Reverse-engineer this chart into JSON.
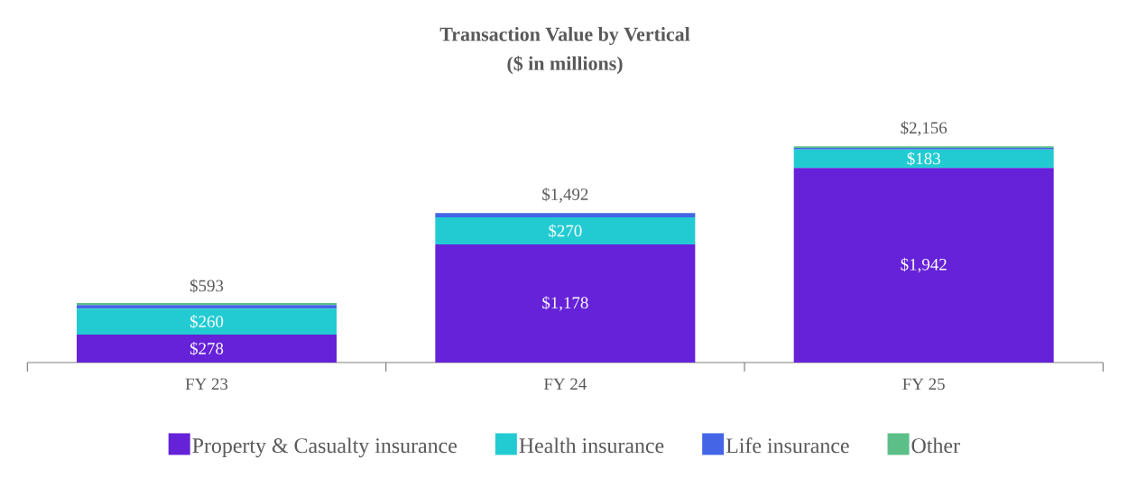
{
  "chart_data": {
    "type": "bar",
    "stacked": true,
    "title": "Transaction Value by Vertical",
    "subtitle": "($ in millions)",
    "categories": [
      "FY 23",
      "FY 24",
      "FY 25"
    ],
    "series": [
      {
        "name": "Property & Casualty insurance",
        "color": "#6622d8",
        "values": [
          278,
          1178,
          1942
        ],
        "value_labels": [
          "$278",
          "$1,178",
          "$1,942"
        ]
      },
      {
        "name": "Health insurance",
        "color": "#22cbd2",
        "values": [
          260,
          270,
          183
        ],
        "value_labels": [
          "$260",
          "$270",
          "$183"
        ]
      },
      {
        "name": "Life insurance",
        "color": "#4466e6",
        "values": [
          36,
          44,
          16
        ]
      },
      {
        "name": "Other",
        "color": "#5cbf88",
        "values": [
          19,
          0,
          15
        ]
      }
    ],
    "totals": [
      "$593",
      "$1,492",
      "$2,156"
    ],
    "tick_labels": "x",
    "legend": "bottom"
  }
}
